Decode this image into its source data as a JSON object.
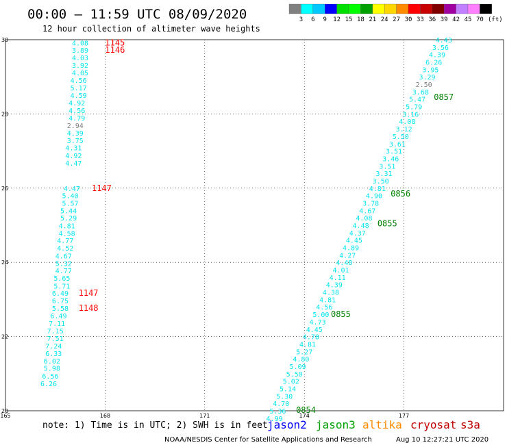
{
  "header": {
    "title": "00:00 – 11:59 UTC 08/09/2020",
    "subtitle": "12 hour collection of altimeter wave heights"
  },
  "legend": {
    "ticks": [
      "3",
      "6",
      "9",
      "12",
      "15",
      "18",
      "21",
      "24",
      "27",
      "30",
      "33",
      "36",
      "39",
      "42",
      "45",
      "70"
    ],
    "unit": "(ft)",
    "colors": [
      "#808080",
      "#00ffff",
      "#00c8ff",
      "#0000ff",
      "#00e000",
      "#00ff00",
      "#00a000",
      "#ffff00",
      "#ffd700",
      "#ff8c00",
      "#ff0000",
      "#c80000",
      "#800000",
      "#a000a0",
      "#c080ff",
      "#ff80ff",
      "#000000"
    ]
  },
  "footer": {
    "note": "note: 1) Time is in UTC; 2) SWH is in feet",
    "missions": [
      {
        "label": "jason2",
        "color": "#0000ff"
      },
      {
        "label": "jason3",
        "color": "#00a000"
      },
      {
        "label": "altika",
        "color": "#ff8c00"
      },
      {
        "label": "cryosat",
        "color": "#c00000"
      },
      {
        "label": "s3a",
        "color": "#c00000"
      }
    ],
    "credit": "NOAA/NESDIS Center for Satellite Applications and Research",
    "timestamp": "Aug 10 12:27:21 UTC 2020"
  },
  "chart_data": {
    "type": "scatter",
    "xlim": [
      165,
      180
    ],
    "ylim": [
      20,
      30
    ],
    "x_ticks": [
      "165",
      "168",
      "171",
      "174",
      "177"
    ],
    "y_ticks": [
      "20",
      "22",
      "24",
      "26",
      "28",
      "30"
    ],
    "grid": true,
    "series": [
      {
        "color": "#00e5ee",
        "points": [
          [
            167.25,
            29.92,
            "4.08"
          ],
          [
            167.25,
            29.72,
            "3.89"
          ],
          [
            167.25,
            29.52,
            "4.03"
          ],
          [
            167.25,
            29.32,
            "3.92"
          ],
          [
            167.25,
            29.11,
            "4.05"
          ],
          [
            167.2,
            28.91,
            "4.56"
          ],
          [
            167.2,
            28.71,
            "5.17"
          ],
          [
            167.2,
            28.51,
            "4.59"
          ],
          [
            167.15,
            28.3,
            "4.92"
          ],
          [
            167.15,
            28.1,
            "4.56"
          ],
          [
            167.15,
            27.9,
            "4.79"
          ],
          [
            167.1,
            27.69,
            "2.94"
          ],
          [
            167.1,
            27.49,
            "4.39"
          ],
          [
            167.1,
            27.29,
            "3.75"
          ],
          [
            167.05,
            27.09,
            "4.31"
          ],
          [
            167.05,
            26.88,
            "4.92"
          ],
          [
            167.05,
            26.68,
            "4.47"
          ],
          [
            167.0,
            26.0,
            "4.47"
          ],
          [
            166.95,
            25.8,
            "5.40"
          ],
          [
            166.95,
            25.6,
            "5.57"
          ],
          [
            166.9,
            25.4,
            "5.44"
          ],
          [
            166.9,
            25.2,
            "5.29"
          ],
          [
            166.85,
            24.99,
            "4.81"
          ],
          [
            166.85,
            24.79,
            "4.58"
          ],
          [
            166.8,
            24.59,
            "4.77"
          ],
          [
            166.8,
            24.39,
            "4.52"
          ],
          [
            166.75,
            24.18,
            "4.67"
          ],
          [
            166.75,
            23.98,
            "5.32"
          ],
          [
            166.75,
            23.78,
            "4.77"
          ],
          [
            166.7,
            23.58,
            "5.65"
          ],
          [
            166.7,
            23.37,
            "5.71"
          ],
          [
            166.65,
            23.17,
            "6.49"
          ],
          [
            166.65,
            22.97,
            "6.75"
          ],
          [
            166.65,
            22.77,
            "5.58"
          ],
          [
            166.6,
            22.56,
            "6.49"
          ],
          [
            166.55,
            22.36,
            "7.11"
          ],
          [
            166.5,
            22.16,
            "7.15"
          ],
          [
            166.5,
            21.96,
            "7.51"
          ],
          [
            166.45,
            21.75,
            "7.24"
          ],
          [
            166.45,
            21.55,
            "6.33"
          ],
          [
            166.4,
            21.35,
            "6.02"
          ],
          [
            166.4,
            21.15,
            "5.98"
          ],
          [
            166.35,
            20.94,
            "6.56"
          ],
          [
            166.3,
            20.74,
            "6.26"
          ]
        ]
      },
      {
        "color": "#00e5ee",
        "points": [
          [
            178.2,
            30.0,
            "4.43"
          ],
          [
            178.1,
            29.8,
            "3.56"
          ],
          [
            178.0,
            29.6,
            "4.39"
          ],
          [
            177.9,
            29.4,
            "6.26"
          ],
          [
            177.8,
            29.2,
            "3.95"
          ],
          [
            177.7,
            29.0,
            "3.29"
          ],
          [
            177.6,
            28.8,
            "2.50"
          ],
          [
            177.5,
            28.6,
            "3.68"
          ],
          [
            177.4,
            28.4,
            "5.47"
          ],
          [
            177.3,
            28.2,
            "5.79"
          ],
          [
            177.2,
            28.0,
            "3.16"
          ],
          [
            177.1,
            27.8,
            "4.08"
          ],
          [
            177.0,
            27.6,
            "3.12"
          ],
          [
            176.9,
            27.4,
            "5.50"
          ],
          [
            176.8,
            27.2,
            "3.61"
          ],
          [
            176.7,
            27.0,
            "3.51"
          ],
          [
            176.6,
            26.8,
            "3.46"
          ],
          [
            176.5,
            26.6,
            "3.51"
          ],
          [
            176.4,
            26.4,
            "3.31"
          ],
          [
            176.3,
            26.2,
            "3.50"
          ],
          [
            176.2,
            26.0,
            "4.81"
          ],
          [
            176.1,
            25.8,
            "4.90"
          ],
          [
            176.0,
            25.6,
            "3.78"
          ],
          [
            175.9,
            25.4,
            "4.67"
          ],
          [
            175.8,
            25.2,
            "4.08"
          ],
          [
            175.7,
            25.0,
            "4.48"
          ],
          [
            175.6,
            24.8,
            "4.37"
          ],
          [
            175.5,
            24.6,
            "4.45"
          ],
          [
            175.4,
            24.4,
            "4.89"
          ],
          [
            175.3,
            24.2,
            "4.27"
          ],
          [
            175.2,
            24.0,
            "4.48"
          ],
          [
            175.1,
            23.8,
            "4.01"
          ],
          [
            175.0,
            23.6,
            "4.11"
          ],
          [
            174.9,
            23.4,
            "4.39"
          ],
          [
            174.8,
            23.2,
            "4.38"
          ],
          [
            174.7,
            23.0,
            "4.81"
          ],
          [
            174.6,
            22.8,
            "4.56"
          ],
          [
            174.5,
            22.6,
            "5.00"
          ],
          [
            174.4,
            22.4,
            "4.73"
          ],
          [
            174.3,
            22.2,
            "4.45"
          ],
          [
            174.2,
            22.0,
            "4.78"
          ],
          [
            174.1,
            21.8,
            "4.81"
          ],
          [
            174.0,
            21.6,
            "5.27"
          ],
          [
            173.9,
            21.4,
            "4.80"
          ],
          [
            173.8,
            21.2,
            "5.09"
          ],
          [
            173.7,
            21.0,
            "5.50"
          ],
          [
            173.6,
            20.8,
            "5.02"
          ],
          [
            173.5,
            20.6,
            "5.14"
          ],
          [
            173.4,
            20.4,
            "5.30"
          ],
          [
            173.3,
            20.2,
            "4.70"
          ],
          [
            173.2,
            20.0,
            "5.36"
          ],
          [
            173.1,
            19.8,
            "4.99"
          ]
        ]
      }
    ],
    "time_labels": [
      {
        "x": 168.0,
        "y": 29.92,
        "text": "1145",
        "color": "#ff0000"
      },
      {
        "x": 168.0,
        "y": 29.72,
        "text": "1146",
        "color": "#ff0000"
      },
      {
        "x": 167.6,
        "y": 26.0,
        "text": "1147",
        "color": "#ff0000"
      },
      {
        "x": 167.2,
        "y": 23.17,
        "text": "1147",
        "color": "#ff0000"
      },
      {
        "x": 167.2,
        "y": 22.77,
        "text": "1148",
        "color": "#ff0000"
      },
      {
        "x": 177.9,
        "y": 28.45,
        "text": "0857",
        "color": "#008000"
      },
      {
        "x": 176.6,
        "y": 25.85,
        "text": "0856",
        "color": "#008000"
      },
      {
        "x": 176.2,
        "y": 25.05,
        "text": "0855",
        "color": "#008000"
      },
      {
        "x": 174.8,
        "y": 22.6,
        "text": "0855",
        "color": "#008000"
      },
      {
        "x": 173.75,
        "y": 20.02,
        "text": "0854",
        "color": "#008000"
      }
    ]
  }
}
